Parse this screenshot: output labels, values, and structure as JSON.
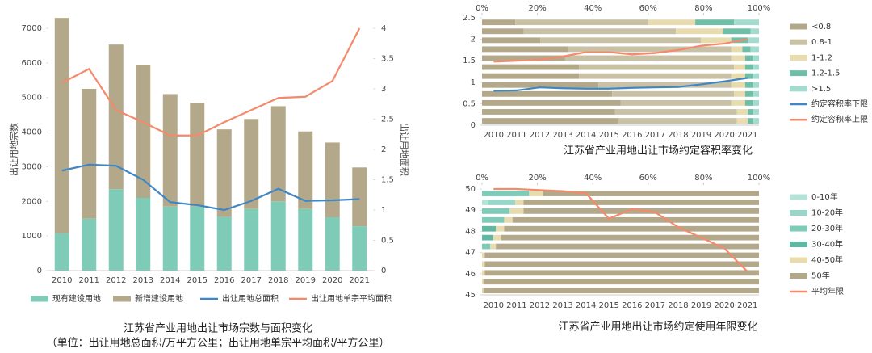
{
  "chart_data": [
    {
      "type": "bar",
      "title": "江苏省产业用地出让市场宗数与面积变化",
      "subtitle": "（单位：出让用地总面积/万平方公里；出让用地单宗平均面积/平方公里）",
      "ylabel": "出让用地宗数",
      "y2label": "出让用地面积",
      "categories": [
        "2010",
        "2011",
        "2012",
        "2013",
        "2014",
        "2015",
        "2016",
        "2017",
        "2018",
        "2019",
        "2020",
        "2021"
      ],
      "ylim": [
        0,
        7000
      ],
      "yticks": [
        0,
        1000,
        2000,
        3000,
        4000,
        5000,
        6000,
        7000
      ],
      "y2lim": [
        0,
        4
      ],
      "y2ticks": [
        0,
        0.5,
        1,
        1.5,
        2,
        2.5,
        3,
        3.5,
        4
      ],
      "legend": "bottom",
      "series": [
        {
          "name": "现有建设用地",
          "type": "bar",
          "color": "#7ecbb8",
          "values": [
            1080,
            1500,
            2350,
            2100,
            1850,
            1850,
            1550,
            1780,
            2000,
            1780,
            1540,
            1280
          ]
        },
        {
          "name": "新增建设用地",
          "type": "bar",
          "color": "#b3a98a",
          "values": [
            6220,
            3750,
            4180,
            3850,
            3250,
            3000,
            2530,
            2600,
            2750,
            2240,
            2160,
            1700
          ]
        },
        {
          "name": "出让用地总面积",
          "type": "line",
          "axis": "y2",
          "color": "#3f86c4",
          "values": [
            1.65,
            1.75,
            1.73,
            1.5,
            1.13,
            1.08,
            1.0,
            1.15,
            1.35,
            1.15,
            1.16,
            1.18
          ]
        },
        {
          "name": "出让用地单宗平均面积",
          "type": "line",
          "axis": "y2",
          "color": "#f4896b",
          "values": [
            3.1,
            3.33,
            2.65,
            2.45,
            2.23,
            2.23,
            2.45,
            2.65,
            2.85,
            2.87,
            3.13,
            4.0
          ]
        }
      ]
    },
    {
      "type": "combo",
      "title": "江苏省产业用地出让市场约定容积率变化",
      "categories": [
        "2010",
        "2011",
        "2012",
        "2013",
        "2014",
        "2015",
        "2016",
        "2017",
        "2018",
        "2019",
        "2020",
        "2021"
      ],
      "ylim": [
        0,
        2.5
      ],
      "yticks": [
        0,
        0.5,
        1,
        1.5,
        2,
        2.5
      ],
      "xlim": [
        0,
        100
      ],
      "xticks": [
        {
          "value": 0,
          "label": "0%"
        },
        {
          "value": 20,
          "label": "20%"
        },
        {
          "value": 40,
          "label": "40%"
        },
        {
          "value": 60,
          "label": "60%"
        },
        {
          "value": 80,
          "label": "80%"
        },
        {
          "value": 100,
          "label": "100%"
        }
      ],
      "legend": "right",
      "series": [
        {
          "name": "<0.8",
          "type": "barh",
          "color": "#b3a98a",
          "values": [
            12,
            15,
            21,
            31,
            30,
            35,
            35,
            42,
            47,
            50,
            48,
            49
          ]
        },
        {
          "name": "0.8-1",
          "type": "barh",
          "color": "#c9c1a6",
          "values": [
            48,
            55,
            58,
            59,
            60,
            56,
            55,
            48,
            44,
            40,
            44,
            43
          ]
        },
        {
          "name": "1-1.2",
          "type": "barh",
          "color": "#e8dcae",
          "values": [
            17,
            17,
            11,
            4,
            5,
            4,
            5,
            5,
            4,
            5,
            4,
            4
          ]
        },
        {
          "name": "1.2-1.5",
          "type": "barh",
          "color": "#6fbfa8",
          "values": [
            14,
            10,
            6,
            3,
            3,
            3,
            3,
            3,
            3,
            3,
            2,
            2
          ]
        },
        {
          "name": ">1.5",
          "type": "barh",
          "color": "#a3dccf",
          "values": [
            9,
            3,
            4,
            3,
            2,
            2,
            2,
            2,
            2,
            2,
            2,
            2
          ]
        },
        {
          "name": "约定容积率下限",
          "type": "line",
          "color": "#3f86c4",
          "values": [
            0.8,
            0.81,
            0.88,
            0.86,
            0.85,
            0.85,
            0.87,
            0.88,
            0.89,
            0.95,
            1.02,
            1.1
          ]
        },
        {
          "name": "约定容积率上限",
          "type": "line",
          "color": "#f4896b",
          "values": [
            1.48,
            1.5,
            1.52,
            1.6,
            1.7,
            1.7,
            1.65,
            1.68,
            1.75,
            1.85,
            1.9,
            2.0
          ]
        }
      ]
    },
    {
      "type": "combo",
      "title": "江苏省产业用地出让市场约定使用年限变化",
      "categories": [
        "2010",
        "2011",
        "2012",
        "2013",
        "2014",
        "2015",
        "2016",
        "2017",
        "2018",
        "2019",
        "2020",
        "2021"
      ],
      "ylim": [
        45,
        50
      ],
      "yticks": [
        45,
        46,
        47,
        48,
        49,
        50
      ],
      "xlim": [
        0,
        100
      ],
      "xticks": [
        {
          "value": 0,
          "label": "0%"
        },
        {
          "value": 20,
          "label": "20%"
        },
        {
          "value": 40,
          "label": "40%"
        },
        {
          "value": 60,
          "label": "60%"
        },
        {
          "value": 80,
          "label": "80%"
        },
        {
          "value": 100,
          "label": "100%"
        }
      ],
      "legend": "right",
      "series": [
        {
          "name": "0-10年",
          "type": "barh",
          "color": "#b5e3d8",
          "values": [
            0,
            2,
            0,
            0,
            0,
            0,
            0,
            0,
            0,
            0,
            0,
            0
          ]
        },
        {
          "name": "10-20年",
          "type": "barh",
          "color": "#98d6c8",
          "values": [
            0,
            10,
            0,
            0,
            0,
            0,
            0,
            0,
            0,
            0,
            0,
            0
          ]
        },
        {
          "name": "20-30年",
          "type": "barh",
          "color": "#7ecbb8",
          "values": [
            17,
            0,
            10,
            8,
            0,
            0,
            3,
            0,
            0,
            0,
            0,
            0
          ]
        },
        {
          "name": "30-40年",
          "type": "barh",
          "color": "#5fb8a2",
          "values": [
            0,
            0,
            0,
            0,
            5,
            4,
            0,
            0,
            0,
            0,
            0,
            0
          ]
        },
        {
          "name": "40-50年",
          "type": "barh",
          "color": "#e8dcae",
          "values": [
            5,
            3,
            5,
            3,
            3,
            3,
            2,
            1,
            1,
            1,
            0.5,
            0.5
          ]
        },
        {
          "name": "50年",
          "type": "barh",
          "color": "#b3a98a",
          "values": [
            78,
            85,
            85,
            89,
            92,
            93,
            95,
            99,
            99,
            99,
            99.5,
            99.5
          ]
        },
        {
          "name": "平均年限",
          "type": "line",
          "color": "#f4896b",
          "values": [
            50,
            50,
            49.95,
            49.9,
            49.8,
            48.6,
            49.05,
            48.9,
            48.2,
            47.7,
            47.2,
            46.1
          ]
        }
      ]
    }
  ]
}
